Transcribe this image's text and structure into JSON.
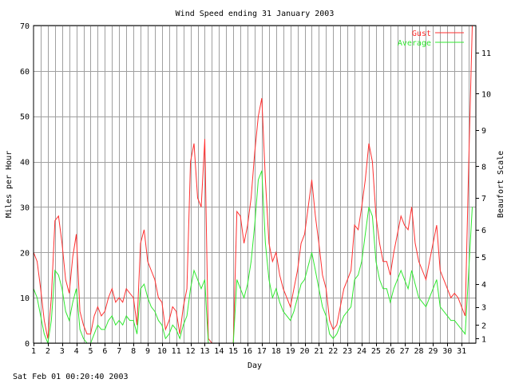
{
  "chart_data": {
    "type": "line",
    "title": "Wind Speed ending 31 January 2003",
    "xlabel": "Day",
    "ylabel": "Miles per Hour",
    "y2label": "Beaufort Scale",
    "footer": "Sat Feb 01 00:20:40 2003",
    "ylim": [
      0,
      70
    ],
    "xlim": [
      1,
      32
    ],
    "y_ticks": [
      "0",
      "10",
      "20",
      "30",
      "40",
      "50",
      "60",
      "70"
    ],
    "x_ticks": [
      "1",
      "2",
      "3",
      "4",
      "5",
      "6",
      "7",
      "8",
      "9",
      "10",
      "11",
      "12",
      "13",
      "14",
      "15",
      "16",
      "17",
      "18",
      "19",
      "20",
      "21",
      "22",
      "23",
      "24",
      "25",
      "26",
      "27",
      "28",
      "29",
      "30",
      "31"
    ],
    "beaufort_ticks": [
      {
        "label": "1",
        "mph": 1
      },
      {
        "label": "2",
        "mph": 4
      },
      {
        "label": "3",
        "mph": 8
      },
      {
        "label": "4",
        "mph": 13
      },
      {
        "label": "5",
        "mph": 19
      },
      {
        "label": "6",
        "mph": 25
      },
      {
        "label": "7",
        "mph": 32
      },
      {
        "label": "8",
        "mph": 39
      },
      {
        "label": "9",
        "mph": 47
      },
      {
        "label": "10",
        "mph": 55
      },
      {
        "label": "11",
        "mph": 64
      }
    ],
    "grid": true,
    "legend_position": "top-right",
    "colors": {
      "gust": "#ff3030",
      "average": "#30e830"
    },
    "series": [
      {
        "name": "Gust",
        "x": [
          1.0,
          1.25,
          1.5,
          1.75,
          2.0,
          2.25,
          2.5,
          2.75,
          3.0,
          3.25,
          3.5,
          3.75,
          4.0,
          4.25,
          4.5,
          4.75,
          5.0,
          5.25,
          5.5,
          5.75,
          6.0,
          6.25,
          6.5,
          6.75,
          7.0,
          7.25,
          7.5,
          7.75,
          8.0,
          8.25,
          8.5,
          8.75,
          9.0,
          9.25,
          9.5,
          9.75,
          10.0,
          10.25,
          10.5,
          10.75,
          11.0,
          11.25,
          11.5,
          11.75,
          12.0,
          12.25,
          12.5,
          12.75,
          13.0,
          13.25,
          13.5,
          13.75,
          14.0,
          14.25,
          14.5,
          14.75,
          15.0,
          15.25,
          15.5,
          15.75,
          16.0,
          16.25,
          16.5,
          16.75,
          17.0,
          17.25,
          17.5,
          17.75,
          18.0,
          18.25,
          18.5,
          18.75,
          19.0,
          19.25,
          19.5,
          19.75,
          20.0,
          20.25,
          20.5,
          20.75,
          21.0,
          21.25,
          21.5,
          21.75,
          22.0,
          22.25,
          22.5,
          22.75,
          23.0,
          23.25,
          23.5,
          23.75,
          24.0,
          24.25,
          24.5,
          24.75,
          25.0,
          25.25,
          25.5,
          25.75,
          26.0,
          26.25,
          26.5,
          26.75,
          27.0,
          27.25,
          27.5,
          27.75,
          28.0,
          28.25,
          28.5,
          28.75,
          29.0,
          29.25,
          29.5,
          29.75,
          30.0,
          30.25,
          30.5,
          30.75,
          31.0,
          31.25,
          31.5,
          31.75
        ],
        "values": [
          20,
          18,
          12,
          5,
          1,
          10,
          27,
          28,
          22,
          14,
          11,
          19,
          24,
          7,
          4,
          2,
          2,
          6,
          8,
          6,
          7,
          10,
          12,
          9,
          10,
          9,
          12,
          11,
          10,
          4,
          22,
          25,
          18,
          16,
          14,
          10,
          9,
          3,
          5,
          8,
          7,
          2,
          8,
          12,
          40,
          44,
          32,
          30,
          45,
          1,
          0,
          0,
          0,
          0,
          0,
          0,
          0,
          29,
          28,
          22,
          26,
          32,
          42,
          50,
          54,
          36,
          22,
          18,
          20,
          15,
          12,
          10,
          8,
          12,
          16,
          22,
          24,
          30,
          36,
          28,
          22,
          15,
          12,
          5,
          3,
          4,
          8,
          12,
          14,
          16,
          26,
          25,
          30,
          36,
          44,
          40,
          28,
          22,
          18,
          18,
          15,
          20,
          24,
          28,
          26,
          25,
          30,
          22,
          18,
          16,
          14,
          18,
          22,
          26,
          16,
          14,
          12,
          10,
          11,
          10,
          8,
          6,
          40,
          70
        ]
      },
      {
        "name": "Average",
        "x": [
          1.0,
          1.25,
          1.5,
          1.75,
          2.0,
          2.25,
          2.5,
          2.75,
          3.0,
          3.25,
          3.5,
          3.75,
          4.0,
          4.25,
          4.5,
          4.75,
          5.0,
          5.25,
          5.5,
          5.75,
          6.0,
          6.25,
          6.5,
          6.75,
          7.0,
          7.25,
          7.5,
          7.75,
          8.0,
          8.25,
          8.5,
          8.75,
          9.0,
          9.25,
          9.5,
          9.75,
          10.0,
          10.25,
          10.5,
          10.75,
          11.0,
          11.25,
          11.5,
          11.75,
          12.0,
          12.25,
          12.5,
          12.75,
          13.0,
          13.25,
          13.5,
          13.75,
          14.0,
          14.25,
          14.5,
          14.75,
          15.0,
          15.25,
          15.5,
          15.75,
          16.0,
          16.25,
          16.5,
          16.75,
          17.0,
          17.25,
          17.5,
          17.75,
          18.0,
          18.25,
          18.5,
          18.75,
          19.0,
          19.25,
          19.5,
          19.75,
          20.0,
          20.25,
          20.5,
          20.75,
          21.0,
          21.25,
          21.5,
          21.75,
          22.0,
          22.25,
          22.5,
          22.75,
          23.0,
          23.25,
          23.5,
          23.75,
          24.0,
          24.25,
          24.5,
          24.75,
          25.0,
          25.25,
          25.5,
          25.75,
          26.0,
          26.25,
          26.5,
          26.75,
          27.0,
          27.25,
          27.5,
          27.75,
          28.0,
          28.25,
          28.5,
          28.75,
          29.0,
          29.25,
          29.5,
          29.75,
          30.0,
          30.25,
          30.5,
          30.75,
          31.0,
          31.25,
          31.5,
          31.75
        ],
        "values": [
          12,
          10,
          6,
          2,
          0,
          5,
          16,
          15,
          12,
          7,
          5,
          9,
          12,
          3,
          1,
          0,
          0,
          2,
          4,
          3,
          3,
          5,
          6,
          4,
          5,
          4,
          6,
          5,
          5,
          2,
          12,
          13,
          10,
          8,
          7,
          5,
          4,
          1,
          2,
          4,
          3,
          1,
          4,
          6,
          12,
          16,
          14,
          12,
          14,
          0,
          0,
          0,
          0,
          0,
          0,
          0,
          0,
          14,
          12,
          10,
          13,
          18,
          26,
          36,
          38,
          22,
          14,
          10,
          12,
          9,
          7,
          6,
          5,
          7,
          10,
          13,
          14,
          17,
          20,
          16,
          12,
          8,
          6,
          2,
          1,
          2,
          4,
          6,
          7,
          8,
          14,
          15,
          18,
          24,
          30,
          28,
          18,
          14,
          12,
          12,
          9,
          12,
          14,
          16,
          14,
          12,
          16,
          13,
          10,
          9,
          8,
          10,
          12,
          14,
          8,
          7,
          6,
          5,
          5,
          4,
          3,
          2,
          16,
          30
        ]
      }
    ]
  }
}
